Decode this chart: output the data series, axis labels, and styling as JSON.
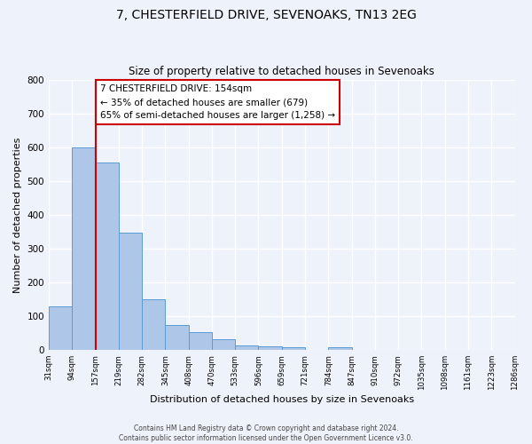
{
  "title": "7, CHESTERFIELD DRIVE, SEVENOAKS, TN13 2EG",
  "subtitle": "Size of property relative to detached houses in Sevenoaks",
  "xlabel": "Distribution of detached houses by size in Sevenoaks",
  "ylabel": "Number of detached properties",
  "bar_heights": [
    128,
    600,
    555,
    348,
    150,
    75,
    52,
    33,
    14,
    10,
    8,
    0,
    8,
    0,
    0,
    0,
    0,
    0,
    0,
    0
  ],
  "bin_labels": [
    "31sqm",
    "94sqm",
    "157sqm",
    "219sqm",
    "282sqm",
    "345sqm",
    "408sqm",
    "470sqm",
    "533sqm",
    "596sqm",
    "659sqm",
    "721sqm",
    "784sqm",
    "847sqm",
    "910sqm",
    "972sqm",
    "1035sqm",
    "1098sqm",
    "1161sqm",
    "1223sqm",
    "1286sqm"
  ],
  "bar_color": "#aec6e8",
  "bar_edge_color": "#5b9bd5",
  "property_line_x": 2,
  "annotation_text": "7 CHESTERFIELD DRIVE: 154sqm\n← 35% of detached houses are smaller (679)\n65% of semi-detached houses are larger (1,258) →",
  "annotation_box_color": "white",
  "annotation_box_edge_color": "#cc0000",
  "vline_color": "#cc0000",
  "ylim": [
    0,
    800
  ],
  "yticks": [
    0,
    100,
    200,
    300,
    400,
    500,
    600,
    700,
    800
  ],
  "background_color": "#eef2fa",
  "grid_color": "white",
  "footer_line1": "Contains HM Land Registry data © Crown copyright and database right 2024.",
  "footer_line2": "Contains public sector information licensed under the Open Government Licence v3.0."
}
